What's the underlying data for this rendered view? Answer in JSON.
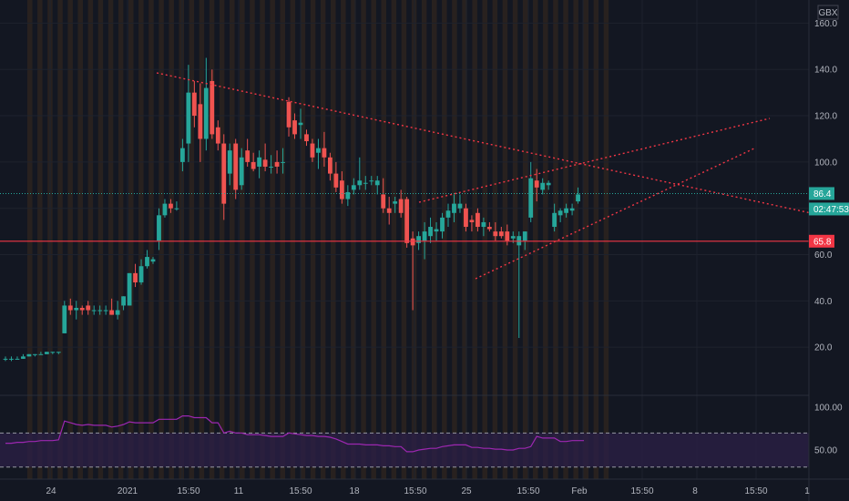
{
  "currency": "GBX",
  "colors": {
    "background": "#131722",
    "session_band": "#3a2a1e",
    "up": "#26a69a",
    "down": "#ef5350",
    "support_line": "#f23645",
    "trend_line": "#f23645",
    "rsi_line": "#9c27b0",
    "rsi_band": "#2a1f45",
    "price_line": "#26a69a"
  },
  "main_axis": {
    "min": 0,
    "max": 170,
    "ticks": [
      "160.0",
      "140.0",
      "120.0",
      "100.0",
      "60.0",
      "40.0",
      "20.0"
    ]
  },
  "rsi_axis": {
    "min": 18,
    "max": 112,
    "ticks": [
      "100.00",
      "50.00"
    ],
    "band": [
      30,
      70
    ]
  },
  "time_axis": {
    "labels": [
      "24",
      "2021",
      "15:50",
      "11",
      "15:50",
      "18",
      "15:50",
      "25",
      "15:50",
      "Feb",
      "15:50",
      "8",
      "15:50",
      "1"
    ]
  },
  "price_tags": {
    "last_price": "86.4",
    "countdown": "02:47:53",
    "support": "65.8"
  },
  "chart_data": {
    "type": "candlestick",
    "series": [
      {
        "type": "ohlc",
        "candles": [
          {
            "o": 15,
            "h": 16,
            "l": 14,
            "c": 15
          },
          {
            "o": 15,
            "h": 16,
            "l": 14,
            "c": 15
          },
          {
            "o": 15,
            "h": 16,
            "l": 15,
            "c": 15
          },
          {
            "o": 15,
            "h": 17,
            "l": 15,
            "c": 16
          },
          {
            "o": 16,
            "h": 17,
            "l": 16,
            "c": 17
          },
          {
            "o": 17,
            "h": 17,
            "l": 16,
            "c": 17
          },
          {
            "o": 17,
            "h": 18,
            "l": 17,
            "c": 17
          },
          {
            "o": 17,
            "h": 18,
            "l": 17,
            "c": 18
          },
          {
            "o": 18,
            "h": 18,
            "l": 17,
            "c": 18
          },
          {
            "o": 18,
            "h": 18,
            "l": 17,
            "c": 18
          },
          {
            "o": 26,
            "h": 40,
            "l": 26,
            "c": 38
          },
          {
            "o": 38,
            "h": 41,
            "l": 34,
            "c": 36
          },
          {
            "o": 36,
            "h": 40,
            "l": 32,
            "c": 37
          },
          {
            "o": 37,
            "h": 38,
            "l": 34,
            "c": 36
          },
          {
            "o": 38,
            "h": 40,
            "l": 34,
            "c": 36
          },
          {
            "o": 36,
            "h": 38,
            "l": 34,
            "c": 36
          },
          {
            "o": 36,
            "h": 38,
            "l": 34,
            "c": 36
          },
          {
            "o": 36,
            "h": 38,
            "l": 34,
            "c": 36
          },
          {
            "o": 36,
            "h": 41,
            "l": 34,
            "c": 34
          },
          {
            "o": 34,
            "h": 40,
            "l": 32,
            "c": 36
          },
          {
            "o": 38,
            "h": 42,
            "l": 36,
            "c": 42
          },
          {
            "o": 38,
            "h": 52,
            "l": 38,
            "c": 52
          },
          {
            "o": 52,
            "h": 56,
            "l": 46,
            "c": 48
          },
          {
            "o": 48,
            "h": 58,
            "l": 47,
            "c": 55
          },
          {
            "o": 55,
            "h": 62,
            "l": 54,
            "c": 59
          },
          {
            "o": 57,
            "h": 59,
            "l": 56,
            "c": 58
          },
          {
            "o": 66,
            "h": 80,
            "l": 62,
            "c": 77
          },
          {
            "o": 77,
            "h": 84,
            "l": 76,
            "c": 82
          },
          {
            "o": 82,
            "h": 84,
            "l": 78,
            "c": 80
          },
          {
            "o": 80,
            "h": 83,
            "l": 79,
            "c": 80
          },
          {
            "o": 100,
            "h": 110,
            "l": 96,
            "c": 106
          },
          {
            "o": 108,
            "h": 142,
            "l": 100,
            "c": 130
          },
          {
            "o": 130,
            "h": 135,
            "l": 115,
            "c": 120
          },
          {
            "o": 125,
            "h": 134,
            "l": 100,
            "c": 110
          },
          {
            "o": 110,
            "h": 145,
            "l": 105,
            "c": 132
          },
          {
            "o": 135,
            "h": 140,
            "l": 110,
            "c": 112
          },
          {
            "o": 115,
            "h": 118,
            "l": 105,
            "c": 108
          },
          {
            "o": 108,
            "h": 112,
            "l": 75,
            "c": 82
          },
          {
            "o": 95,
            "h": 108,
            "l": 90,
            "c": 105
          },
          {
            "o": 108,
            "h": 110,
            "l": 84,
            "c": 88
          },
          {
            "o": 90,
            "h": 106,
            "l": 88,
            "c": 102
          },
          {
            "o": 105,
            "h": 110,
            "l": 98,
            "c": 100
          },
          {
            "o": 100,
            "h": 104,
            "l": 96,
            "c": 97
          },
          {
            "o": 98,
            "h": 105,
            "l": 93,
            "c": 102
          },
          {
            "o": 101,
            "h": 108,
            "l": 96,
            "c": 98
          },
          {
            "o": 98,
            "h": 103,
            "l": 95,
            "c": 98
          },
          {
            "o": 100,
            "h": 105,
            "l": 95,
            "c": 98
          },
          {
            "o": 100,
            "h": 106,
            "l": 95,
            "c": 100
          },
          {
            "o": 126,
            "h": 128,
            "l": 111,
            "c": 115
          },
          {
            "o": 118,
            "h": 121,
            "l": 110,
            "c": 112
          },
          {
            "o": 116,
            "h": 123,
            "l": 110,
            "c": 117
          },
          {
            "o": 112,
            "h": 114,
            "l": 107,
            "c": 109
          },
          {
            "o": 108,
            "h": 110,
            "l": 100,
            "c": 102
          },
          {
            "o": 104,
            "h": 110,
            "l": 97,
            "c": 106
          },
          {
            "o": 106,
            "h": 113,
            "l": 98,
            "c": 102
          },
          {
            "o": 102,
            "h": 104,
            "l": 92,
            "c": 95
          },
          {
            "o": 95,
            "h": 100,
            "l": 87,
            "c": 89
          },
          {
            "o": 92,
            "h": 96,
            "l": 82,
            "c": 84
          },
          {
            "o": 84,
            "h": 90,
            "l": 81,
            "c": 87
          },
          {
            "o": 88,
            "h": 93,
            "l": 86,
            "c": 90
          },
          {
            "o": 90,
            "h": 102,
            "l": 88,
            "c": 92
          },
          {
            "o": 91,
            "h": 94,
            "l": 88,
            "c": 91
          },
          {
            "o": 92,
            "h": 94,
            "l": 90,
            "c": 92
          },
          {
            "o": 90,
            "h": 94,
            "l": 86,
            "c": 92
          },
          {
            "o": 86,
            "h": 93,
            "l": 78,
            "c": 80
          },
          {
            "o": 80,
            "h": 85,
            "l": 73,
            "c": 78
          },
          {
            "o": 82,
            "h": 85,
            "l": 78,
            "c": 83
          },
          {
            "o": 84,
            "h": 88,
            "l": 76,
            "c": 78
          },
          {
            "o": 84,
            "h": 85,
            "l": 63,
            "c": 65
          },
          {
            "o": 67,
            "h": 70,
            "l": 36,
            "c": 64
          },
          {
            "o": 65,
            "h": 70,
            "l": 62,
            "c": 68
          },
          {
            "o": 66,
            "h": 74,
            "l": 58,
            "c": 70
          },
          {
            "o": 68,
            "h": 76,
            "l": 65,
            "c": 72
          },
          {
            "o": 70,
            "h": 74,
            "l": 66,
            "c": 71
          },
          {
            "o": 70,
            "h": 78,
            "l": 67,
            "c": 76
          },
          {
            "o": 76,
            "h": 82,
            "l": 72,
            "c": 79
          },
          {
            "o": 78,
            "h": 86,
            "l": 74,
            "c": 82
          },
          {
            "o": 80,
            "h": 86,
            "l": 78,
            "c": 82
          },
          {
            "o": 80,
            "h": 82,
            "l": 70,
            "c": 72
          },
          {
            "o": 75,
            "h": 77,
            "l": 70,
            "c": 74
          },
          {
            "o": 78,
            "h": 80,
            "l": 70,
            "c": 72
          },
          {
            "o": 72,
            "h": 76,
            "l": 68,
            "c": 74
          },
          {
            "o": 72,
            "h": 74,
            "l": 70,
            "c": 71
          },
          {
            "o": 70,
            "h": 74,
            "l": 66,
            "c": 68
          },
          {
            "o": 70,
            "h": 72,
            "l": 67,
            "c": 68
          },
          {
            "o": 70,
            "h": 73,
            "l": 64,
            "c": 66
          },
          {
            "o": 67,
            "h": 70,
            "l": 65,
            "c": 68
          },
          {
            "o": 64,
            "h": 70,
            "l": 24,
            "c": 68
          },
          {
            "o": 66,
            "h": 70,
            "l": 62,
            "c": 70
          },
          {
            "o": 76,
            "h": 100,
            "l": 74,
            "c": 93
          },
          {
            "o": 92,
            "h": 97,
            "l": 83,
            "c": 89
          },
          {
            "o": 88,
            "h": 93,
            "l": 86,
            "c": 91
          },
          {
            "o": 90,
            "h": 92,
            "l": 88,
            "c": 91
          },
          {
            "o": 72,
            "h": 82,
            "l": 70,
            "c": 78
          },
          {
            "o": 77,
            "h": 80,
            "l": 74,
            "c": 79
          },
          {
            "o": 78,
            "h": 82,
            "l": 76,
            "c": 80
          },
          {
            "o": 79,
            "h": 82,
            "l": 77,
            "c": 80
          },
          {
            "o": 83,
            "h": 89,
            "l": 82,
            "c": 86
          }
        ]
      },
      {
        "type": "rsi",
        "values": [
          58,
          58,
          59,
          59,
          60,
          60,
          61,
          61,
          61,
          62,
          84,
          82,
          80,
          79,
          80,
          79,
          79,
          79,
          77,
          78,
          80,
          83,
          82,
          82,
          82,
          82,
          86,
          86,
          86,
          86,
          90,
          90,
          88,
          88,
          88,
          82,
          82,
          70,
          72,
          70,
          70,
          68,
          68,
          68,
          67,
          66,
          66,
          66,
          70,
          69,
          68,
          67,
          67,
          66,
          66,
          65,
          63,
          60,
          57,
          57,
          57,
          56,
          56,
          56,
          55,
          55,
          54,
          54,
          48,
          48,
          50,
          51,
          52,
          52,
          54,
          55,
          56,
          56,
          56,
          53,
          53,
          52,
          52,
          51,
          51,
          50,
          50,
          52,
          52,
          54,
          66,
          64,
          64,
          64,
          60,
          60,
          61,
          61,
          61
        ]
      }
    ],
    "support_level": 65.8,
    "last_price": 86.4
  }
}
